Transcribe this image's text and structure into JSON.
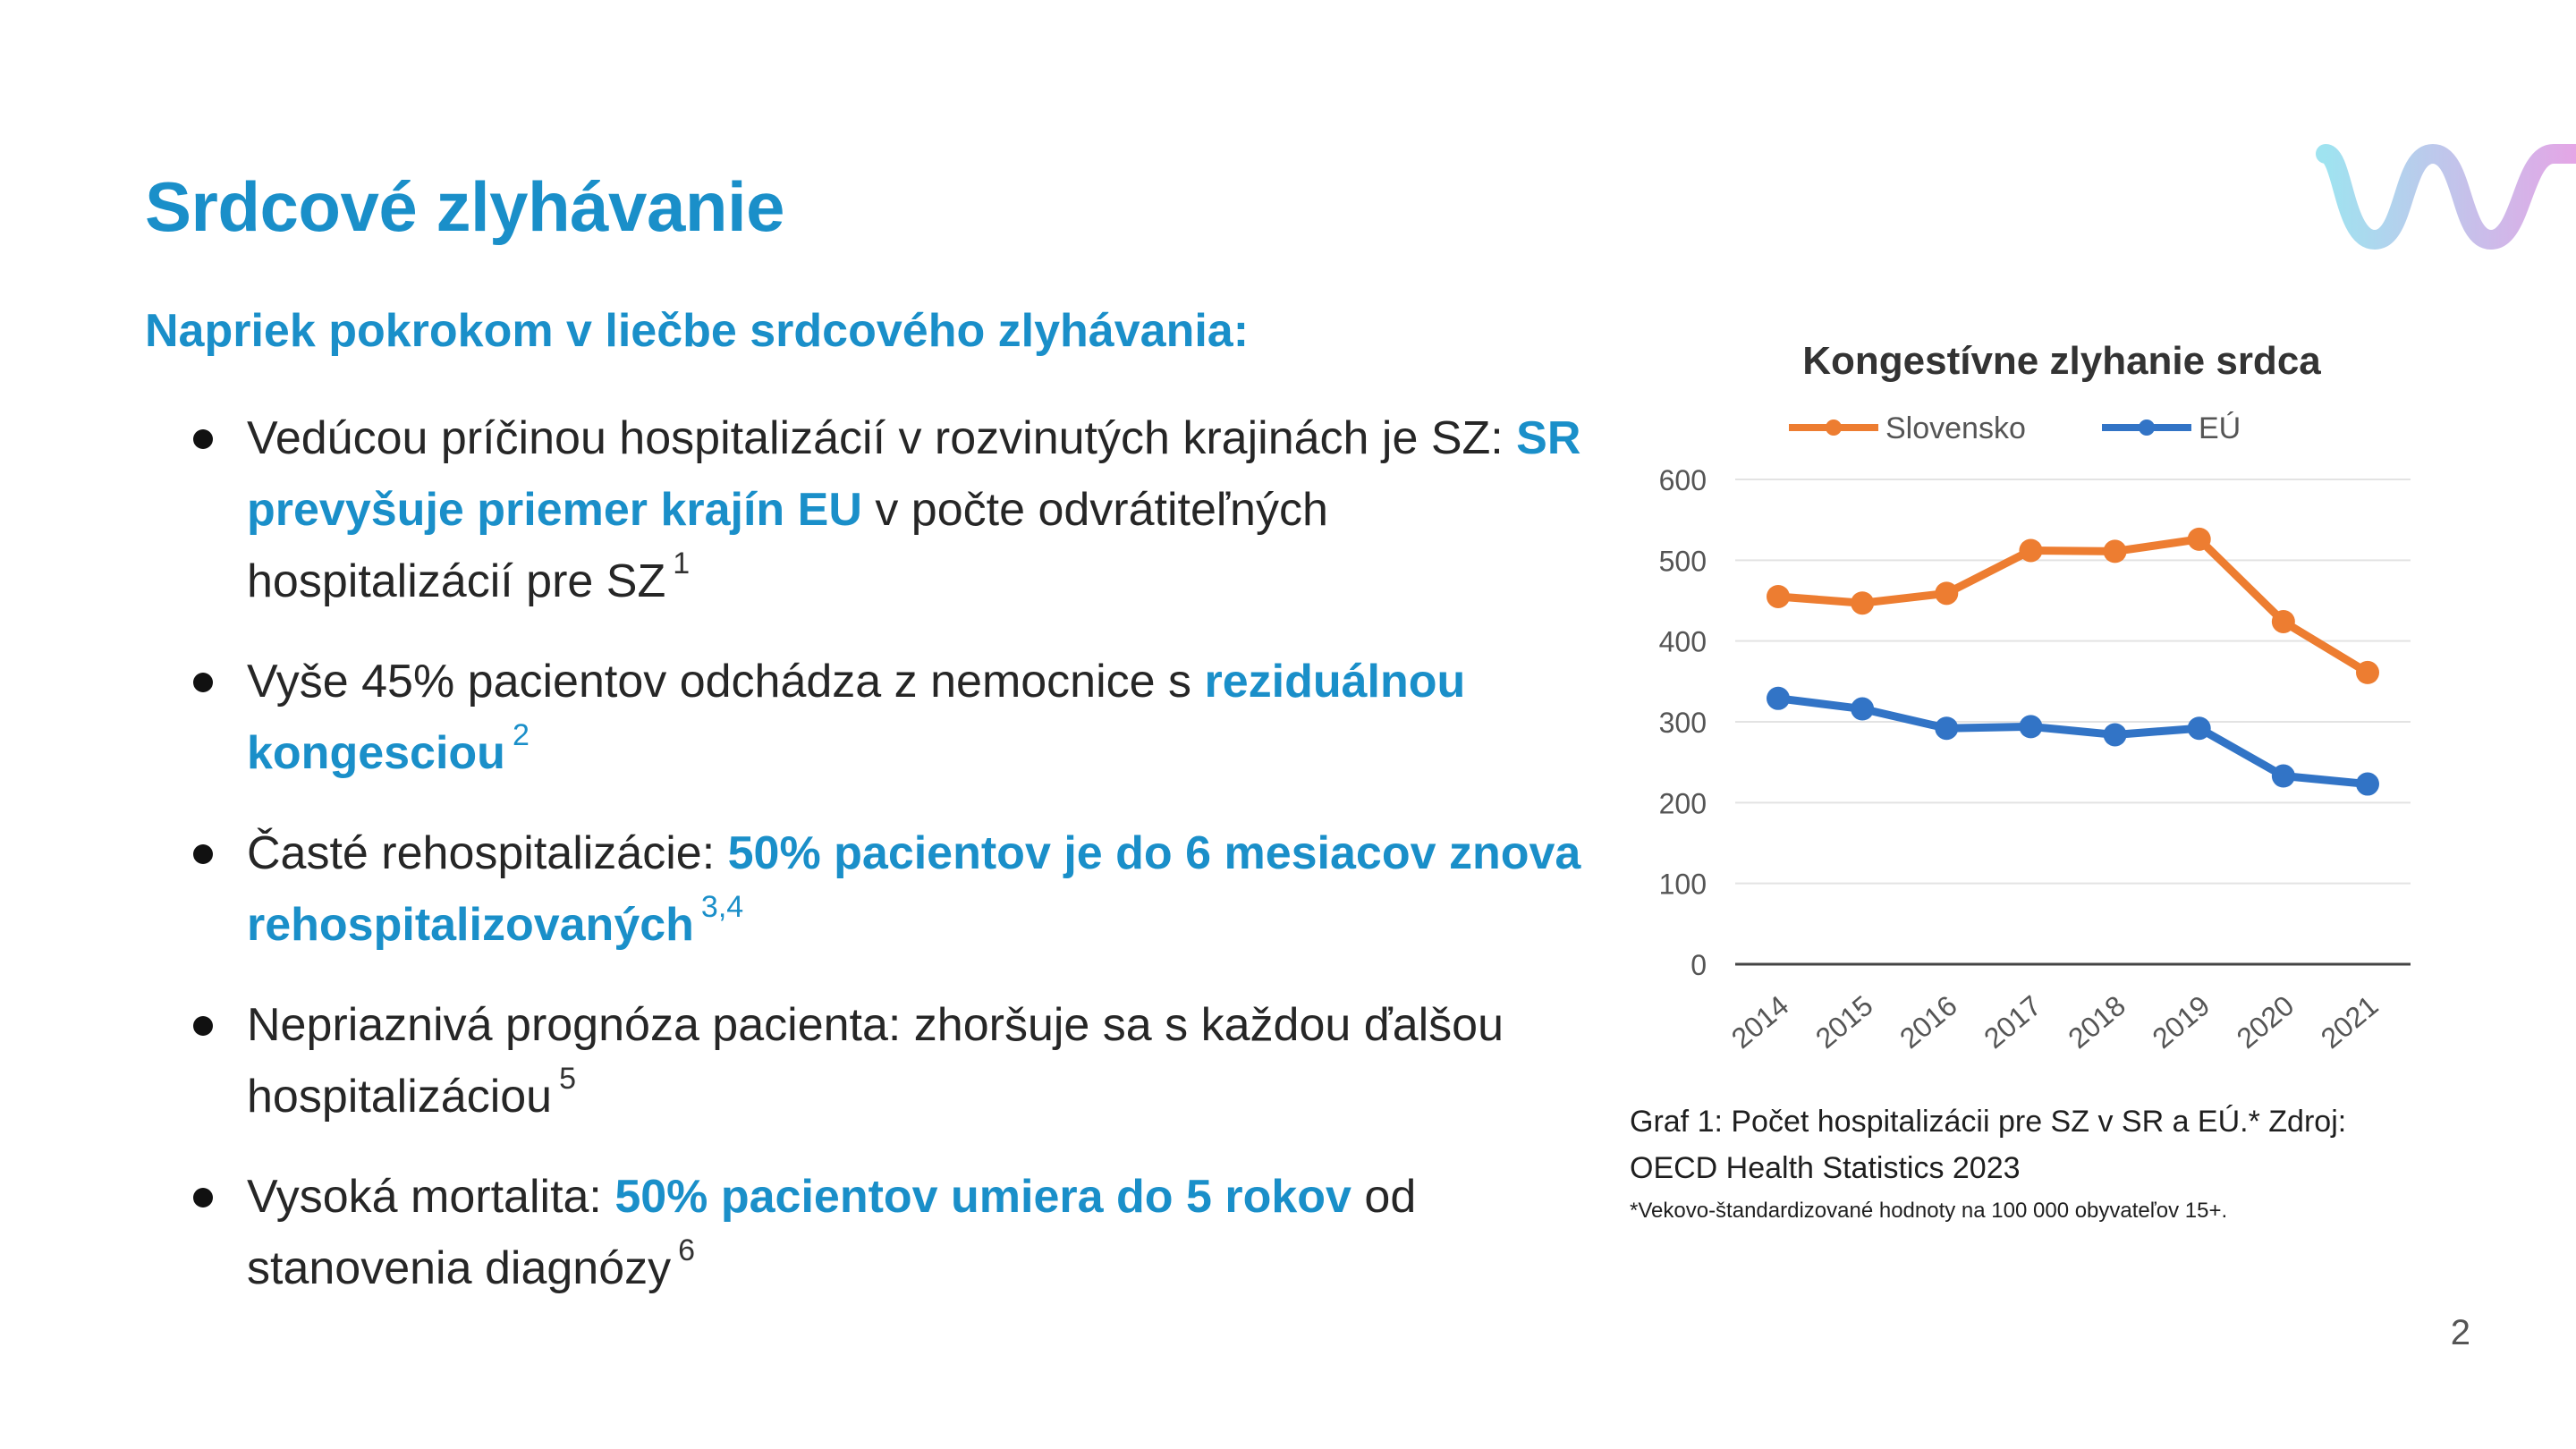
{
  "slide": {
    "title": "Srdcové zlyhávanie",
    "subtitle": "Napriek pokrokom v liečbe srdcového zlyhávania:",
    "page_number": "2"
  },
  "bullets": [
    {
      "parts": [
        {
          "text": "Vedúcou príčinou hospitalizácií v rozvinutých krajinách je SZ: "
        },
        {
          "text": "SR prevyšuje priemer krajín EU",
          "highlight": true
        },
        {
          "text": " v počte odvrátiteľných hospitalizácií pre SZ"
        }
      ],
      "ref": "1",
      "ref_highlight": false
    },
    {
      "parts": [
        {
          "text": "Vyše 45% pacientov odchádza z nemocnice s "
        },
        {
          "text": "reziduálnou kongesciou",
          "highlight": true
        }
      ],
      "ref": "2",
      "ref_highlight": true
    },
    {
      "parts": [
        {
          "text": "Časté rehospitalizácie: "
        },
        {
          "text": "50% pacientov je do 6 mesiacov znova rehospitalizovaných",
          "highlight": true
        }
      ],
      "ref": "3,4",
      "ref_highlight": true
    },
    {
      "parts": [
        {
          "text": "Nepriaznivá prognóza pacienta: zhoršuje sa s každou ďalšou hospitalizáciou"
        }
      ],
      "ref": "5",
      "ref_highlight": false
    },
    {
      "parts": [
        {
          "text": "Vysoká mortalita: "
        },
        {
          "text": "50% pacientov umiera do 5 rokov",
          "highlight": true
        },
        {
          "text": " od stanovenia diagnózy"
        }
      ],
      "ref": "6",
      "ref_highlight": false
    }
  ],
  "chart_data": {
    "type": "line",
    "title": "Kongestívne zlyhanie srdca",
    "x": [
      "2014",
      "2015",
      "2016",
      "2017",
      "2018",
      "2019",
      "2020",
      "2021"
    ],
    "series": [
      {
        "name": "Slovensko",
        "color": "#ed7d31",
        "values": [
          455,
          447,
          459,
          512,
          511,
          526,
          424,
          361
        ]
      },
      {
        "name": "EÚ",
        "color": "#3274c6",
        "values": [
          329,
          316,
          292,
          294,
          284,
          292,
          233,
          223
        ]
      }
    ],
    "ylim": [
      0,
      600
    ],
    "yticks": [
      0,
      100,
      200,
      300,
      400,
      500,
      600
    ],
    "grid": true,
    "legend": "top"
  },
  "caption": {
    "text": "Graf 1: Počet hospitalizácii pre SZ v SR a EÚ.* Zdroj: OECD Health Statistics 2023",
    "footnote": "*Vekovo-štandardizované hodnoty na 100 000 obyvateľov 15+."
  },
  "colors": {
    "accent": "#1a8fc9",
    "logo_gradient": [
      "#9fe3f0",
      "#e4a6e6"
    ]
  }
}
